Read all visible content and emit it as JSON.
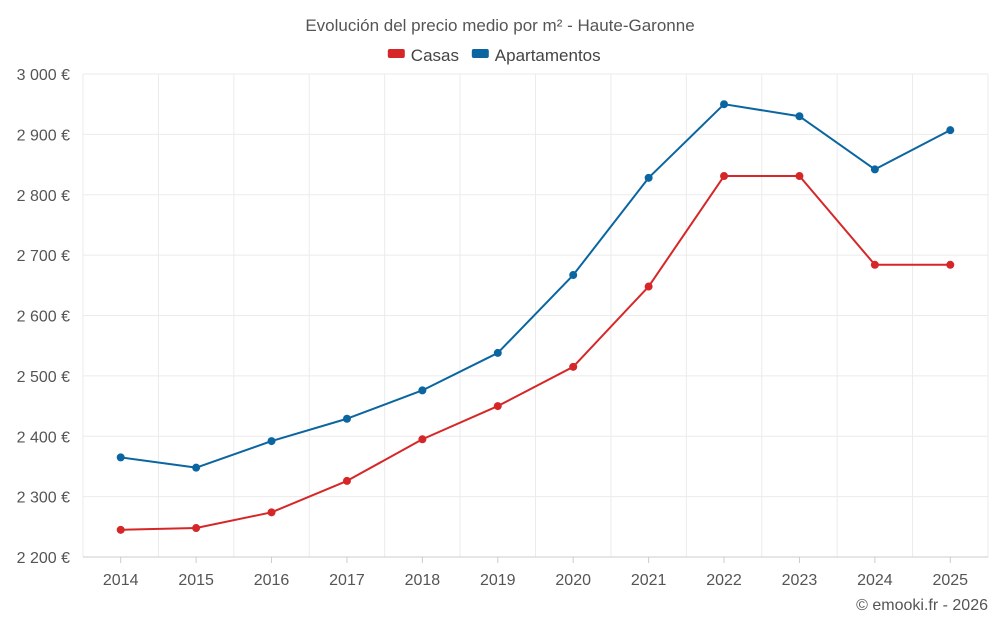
{
  "chart_data": {
    "type": "line",
    "title": "Evolución del precio medio por m² - Haute-Garonne",
    "categories": [
      "2014",
      "2015",
      "2016",
      "2017",
      "2018",
      "2019",
      "2020",
      "2021",
      "2022",
      "2023",
      "2024",
      "2025"
    ],
    "series": [
      {
        "name": "Casas",
        "color": "#d62728",
        "values": [
          2245,
          2248,
          2274,
          2326,
          2395,
          2450,
          2515,
          2648,
          2831,
          2831,
          2684,
          2684
        ]
      },
      {
        "name": "Apartamentos",
        "color": "#0a65a0",
        "values": [
          2365,
          2348,
          2392,
          2429,
          2476,
          2538,
          2667,
          2828,
          2950,
          2930,
          2842,
          2907
        ]
      }
    ],
    "ylim": [
      2200,
      3000
    ],
    "yticks": [
      2200,
      2300,
      2400,
      2500,
      2600,
      2700,
      2800,
      2900,
      3000
    ],
    "ytick_labels": [
      "2 200 €",
      "2 300 €",
      "2 400 €",
      "2 500 €",
      "2 600 €",
      "2 700 €",
      "2 800 €",
      "2 900 €",
      "3 000 €"
    ],
    "xlabel": "",
    "ylabel": "",
    "grid": true,
    "legend_position": "top-center"
  },
  "credit": "© emooki.fr - 2026"
}
